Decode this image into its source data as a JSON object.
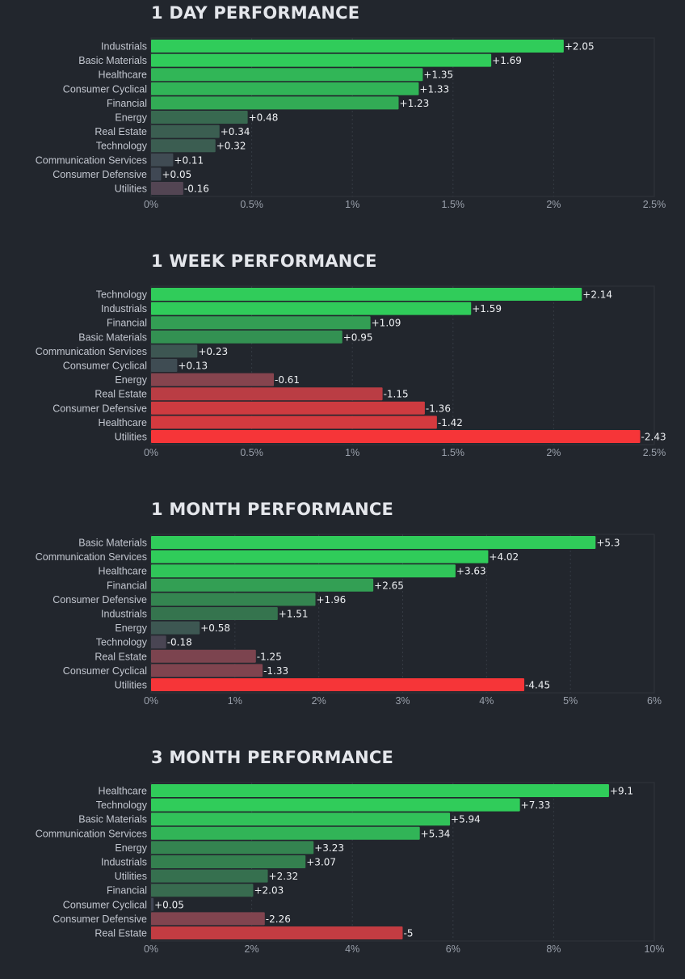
{
  "chart_data": [
    {
      "type": "bar",
      "orientation": "horizontal",
      "title": "1 DAY PERFORMANCE",
      "categories": [
        "Industrials",
        "Basic Materials",
        "Healthcare",
        "Consumer Cyclical",
        "Financial",
        "Energy",
        "Real Estate",
        "Technology",
        "Communication Services",
        "Consumer Defensive",
        "Utilities"
      ],
      "values": [
        2.05,
        1.69,
        1.35,
        1.33,
        1.23,
        0.48,
        0.34,
        0.32,
        0.11,
        0.05,
        -0.16
      ],
      "value_labels": [
        "+2.05",
        "+1.69",
        "+1.35",
        "+1.33",
        "+1.23",
        "+0.48",
        "+0.34",
        "+0.32",
        "+0.11",
        "+0.05",
        "-0.16"
      ],
      "xlim": [
        0,
        2.5
      ],
      "xticks": [
        0,
        0.5,
        1,
        1.5,
        2,
        2.5
      ],
      "xtick_labels": [
        "0%",
        "0.5%",
        "1%",
        "1.5%",
        "2%",
        "2.5%"
      ],
      "bar_length": "absolute value",
      "grid": true
    },
    {
      "type": "bar",
      "orientation": "horizontal",
      "title": "1 WEEK PERFORMANCE",
      "categories": [
        "Technology",
        "Industrials",
        "Financial",
        "Basic Materials",
        "Communication Services",
        "Consumer Cyclical",
        "Energy",
        "Real Estate",
        "Consumer Defensive",
        "Healthcare",
        "Utilities"
      ],
      "values": [
        2.14,
        1.59,
        1.09,
        0.95,
        0.23,
        0.13,
        -0.61,
        -1.15,
        -1.36,
        -1.42,
        -2.43
      ],
      "value_labels": [
        "+2.14",
        "+1.59",
        "+1.09",
        "+0.95",
        "+0.23",
        "+0.13",
        "-0.61",
        "-1.15",
        "-1.36",
        "-1.42",
        "-2.43"
      ],
      "xlim": [
        0,
        2.5
      ],
      "xticks": [
        0,
        0.5,
        1,
        1.5,
        2,
        2.5
      ],
      "xtick_labels": [
        "0%",
        "0.5%",
        "1%",
        "1.5%",
        "2%",
        "2.5%"
      ],
      "bar_length": "absolute value",
      "grid": true
    },
    {
      "type": "bar",
      "orientation": "horizontal",
      "title": "1 MONTH PERFORMANCE",
      "categories": [
        "Basic Materials",
        "Communication Services",
        "Healthcare",
        "Financial",
        "Consumer Defensive",
        "Industrials",
        "Energy",
        "Technology",
        "Real Estate",
        "Consumer Cyclical",
        "Utilities"
      ],
      "values": [
        5.3,
        4.02,
        3.63,
        2.65,
        1.96,
        1.51,
        0.58,
        -0.18,
        -1.25,
        -1.33,
        -4.45
      ],
      "value_labels": [
        "+5.3",
        "+4.02",
        "+3.63",
        "+2.65",
        "+1.96",
        "+1.51",
        "+0.58",
        "-0.18",
        "-1.25",
        "-1.33",
        "-4.45"
      ],
      "xlim": [
        0,
        6
      ],
      "xticks": [
        0,
        1,
        2,
        3,
        4,
        5,
        6
      ],
      "xtick_labels": [
        "0%",
        "1%",
        "2%",
        "3%",
        "4%",
        "5%",
        "6%"
      ],
      "bar_length": "absolute value",
      "grid": true
    },
    {
      "type": "bar",
      "orientation": "horizontal",
      "title": "3 MONTH PERFORMANCE",
      "categories": [
        "Healthcare",
        "Technology",
        "Basic Materials",
        "Communication Services",
        "Energy",
        "Industrials",
        "Utilities",
        "Financial",
        "Consumer Cyclical",
        "Consumer Defensive",
        "Real Estate"
      ],
      "values": [
        9.1,
        7.33,
        5.94,
        5.34,
        3.23,
        3.07,
        2.32,
        2.03,
        0.05,
        -2.26,
        -5
      ],
      "value_labels": [
        "+9.1",
        "+7.33",
        "+5.94",
        "+5.34",
        "+3.23",
        "+3.07",
        "+2.32",
        "+2.03",
        "+0.05",
        "-2.26",
        "-5"
      ],
      "xlim": [
        0,
        10
      ],
      "xticks": [
        0,
        2,
        4,
        6,
        8,
        10
      ],
      "xtick_labels": [
        "0%",
        "2%",
        "4%",
        "6%",
        "8%",
        "10%"
      ],
      "bar_length": "absolute value",
      "grid": true
    }
  ],
  "colors": {
    "background": "#22262d",
    "positive_strong": "#30cc5a",
    "positive_weak": "#35764e",
    "neutral": "#414554",
    "negative_weak": "#8b444e",
    "negative_strong": "#f63538"
  }
}
